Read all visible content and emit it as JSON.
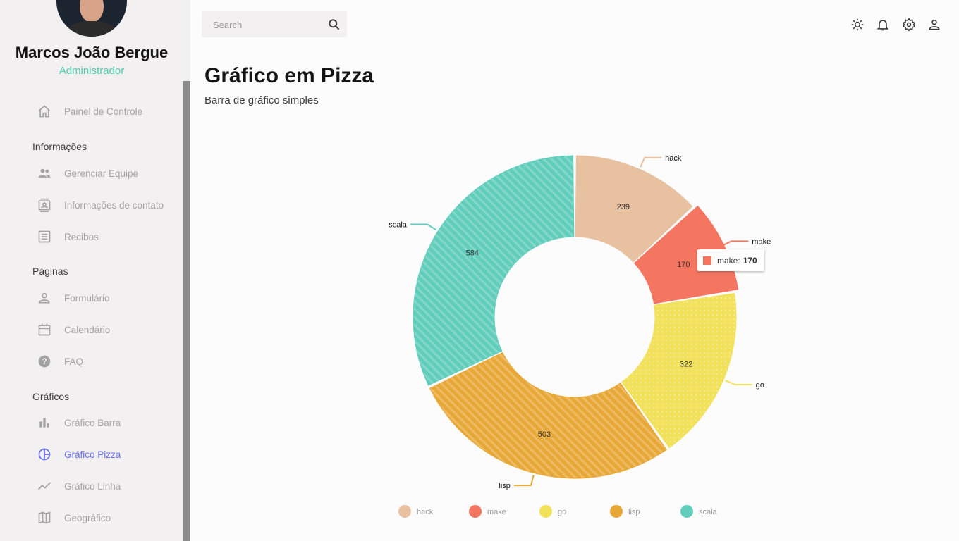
{
  "sidebar": {
    "user_name": "Marcos João Bergue",
    "user_role": "Administrador",
    "items": [
      {
        "label": "Painel de Controle",
        "icon": "home-icon"
      },
      {
        "label": "Gerenciar Equipe",
        "icon": "people-icon"
      },
      {
        "label": "Informações de contato",
        "icon": "contacts-icon"
      },
      {
        "label": "Recibos",
        "icon": "receipt-icon"
      },
      {
        "label": "Formulário",
        "icon": "person-icon"
      },
      {
        "label": "Calendário",
        "icon": "calendar-icon"
      },
      {
        "label": "FAQ",
        "icon": "help-icon"
      },
      {
        "label": "Gráfico Barra",
        "icon": "bar-chart-icon"
      },
      {
        "label": "Gráfico Pizza",
        "icon": "pie-chart-icon"
      },
      {
        "label": "Gráfico Linha",
        "icon": "timeline-icon"
      },
      {
        "label": "Geográfico",
        "icon": "map-icon"
      }
    ],
    "sections": [
      "Informações",
      "Páginas",
      "Gráficos"
    ]
  },
  "topbar": {
    "search_placeholder": "Search",
    "icons": [
      "light-mode-icon",
      "notifications-icon",
      "settings-icon",
      "person-icon"
    ]
  },
  "header": {
    "title": "Gráfico em Pizza",
    "subtitle": "Barra de gráfico simples"
  },
  "tooltip": {
    "label": "make:",
    "value": "170"
  },
  "colors": {
    "accent": "#4cceac",
    "active": "#6870fa"
  },
  "chart_data": {
    "type": "pie",
    "title": "",
    "donut": true,
    "categories": [
      "hack",
      "make",
      "go",
      "lisp",
      "scala"
    ],
    "values": [
      239,
      170,
      322,
      503,
      584
    ],
    "colors": [
      "#e8c1a0",
      "#f47560",
      "#f1e15b",
      "#e8a838",
      "#61cdbb"
    ],
    "legend": "bottom",
    "legend_entries": [
      "hack",
      "make",
      "go",
      "lisp",
      "scala"
    ]
  }
}
